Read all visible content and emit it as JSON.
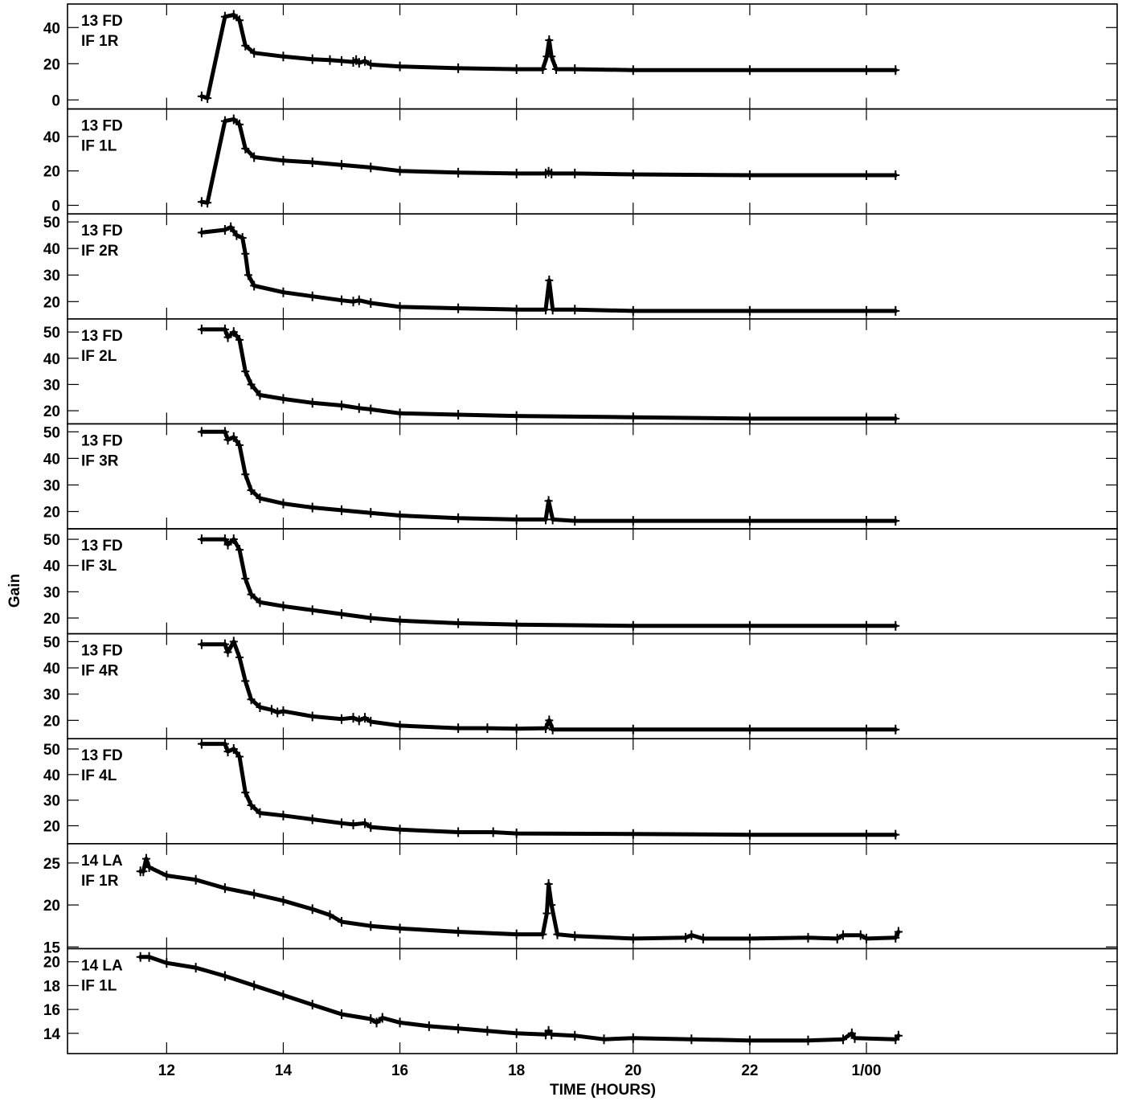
{
  "chart_data": {
    "type": "line",
    "ylabel": "Gain",
    "xlabel": "TIME (HOURS)",
    "xlim": [
      10.3,
      28.3
    ],
    "xticks": [
      12,
      14,
      16,
      18,
      20,
      22,
      24
    ],
    "xtick_labels": [
      "12",
      "14",
      "16",
      "18",
      "20",
      "22",
      "1/00"
    ],
    "marker": "plus",
    "panels": [
      {
        "label_line1": "13 FD",
        "label_line2": "IF 1R",
        "ylim": [
          -5,
          53
        ],
        "yticks": [
          0,
          20,
          40
        ],
        "points": [
          [
            12.6,
            2
          ],
          [
            12.7,
            1
          ],
          [
            13.0,
            46
          ],
          [
            13.15,
            47
          ],
          [
            13.25,
            44
          ],
          [
            13.35,
            30
          ],
          [
            13.5,
            26
          ],
          [
            14,
            24
          ],
          [
            14.5,
            22.5
          ],
          [
            14.8,
            22
          ],
          [
            15,
            21.5
          ],
          [
            15.2,
            21
          ],
          [
            15.25,
            22
          ],
          [
            15.3,
            20.5
          ],
          [
            15.4,
            21.5
          ],
          [
            15.5,
            19.5
          ],
          [
            16,
            18.5
          ],
          [
            17,
            17.5
          ],
          [
            18,
            17
          ],
          [
            18.45,
            17
          ],
          [
            18.52,
            24
          ],
          [
            18.56,
            33
          ],
          [
            18.6,
            24
          ],
          [
            18.68,
            17
          ],
          [
            19,
            17
          ],
          [
            20,
            16.5
          ],
          [
            22,
            16.5
          ],
          [
            24,
            16.5
          ],
          [
            24.5,
            16.5
          ]
        ]
      },
      {
        "label_line1": "13 FD",
        "label_line2": "IF 1L",
        "ylim": [
          -5,
          56
        ],
        "yticks": [
          0,
          20,
          40
        ],
        "points": [
          [
            12.6,
            2
          ],
          [
            12.7,
            1.5
          ],
          [
            13.0,
            49
          ],
          [
            13.15,
            50
          ],
          [
            13.25,
            47
          ],
          [
            13.35,
            33
          ],
          [
            13.5,
            28
          ],
          [
            14,
            26
          ],
          [
            14.5,
            25
          ],
          [
            15,
            23.5
          ],
          [
            15.5,
            22
          ],
          [
            16,
            20
          ],
          [
            17,
            19
          ],
          [
            18,
            18.5
          ],
          [
            18.5,
            18.5
          ],
          [
            18.55,
            19.5
          ],
          [
            18.6,
            18.5
          ],
          [
            19,
            18.5
          ],
          [
            20,
            18
          ],
          [
            22,
            17.5
          ],
          [
            24,
            17.5
          ],
          [
            24.5,
            17.5
          ]
        ]
      },
      {
        "label_line1": "13 FD",
        "label_line2": "IF 2R",
        "ylim": [
          13.5,
          53
        ],
        "yticks": [
          20,
          30,
          40,
          50
        ],
        "points": [
          [
            12.6,
            46
          ],
          [
            13.0,
            47
          ],
          [
            13.1,
            48
          ],
          [
            13.2,
            45
          ],
          [
            13.3,
            44
          ],
          [
            13.35,
            38
          ],
          [
            13.4,
            30
          ],
          [
            13.5,
            26
          ],
          [
            14,
            23.5
          ],
          [
            14.5,
            22
          ],
          [
            15,
            20.5
          ],
          [
            15.2,
            20
          ],
          [
            15.3,
            20.5
          ],
          [
            15.5,
            19.5
          ],
          [
            16,
            18
          ],
          [
            17,
            17.5
          ],
          [
            18,
            17
          ],
          [
            18.5,
            17
          ],
          [
            18.56,
            28
          ],
          [
            18.62,
            17
          ],
          [
            19,
            17
          ],
          [
            20,
            16.5
          ],
          [
            22,
            16.5
          ],
          [
            24,
            16.5
          ],
          [
            24.5,
            16.5
          ]
        ]
      },
      {
        "label_line1": "13 FD",
        "label_line2": "IF 2L",
        "ylim": [
          15,
          55
        ],
        "yticks": [
          20,
          30,
          40,
          50
        ],
        "points": [
          [
            12.6,
            51
          ],
          [
            13.0,
            51
          ],
          [
            13.05,
            48
          ],
          [
            13.15,
            50
          ],
          [
            13.25,
            47
          ],
          [
            13.35,
            35
          ],
          [
            13.45,
            30
          ],
          [
            13.6,
            26
          ],
          [
            14,
            24.5
          ],
          [
            14.5,
            23
          ],
          [
            15,
            22
          ],
          [
            15.3,
            21
          ],
          [
            15.5,
            20.5
          ],
          [
            16,
            19
          ],
          [
            17,
            18.5
          ],
          [
            18,
            18
          ],
          [
            20,
            17.5
          ],
          [
            22,
            17
          ],
          [
            24,
            17
          ],
          [
            24.5,
            17
          ]
        ]
      },
      {
        "label_line1": "13 FD",
        "label_line2": "IF 3R",
        "ylim": [
          13.5,
          53
        ],
        "yticks": [
          20,
          30,
          40,
          50
        ],
        "points": [
          [
            12.6,
            50
          ],
          [
            13.0,
            50
          ],
          [
            13.05,
            47
          ],
          [
            13.15,
            48
          ],
          [
            13.25,
            45
          ],
          [
            13.35,
            34
          ],
          [
            13.45,
            28
          ],
          [
            13.6,
            25
          ],
          [
            14,
            23
          ],
          [
            14.5,
            21.5
          ],
          [
            15,
            20.5
          ],
          [
            15.5,
            19.5
          ],
          [
            16,
            18.5
          ],
          [
            17,
            17.5
          ],
          [
            18,
            17
          ],
          [
            18.5,
            17
          ],
          [
            18.55,
            24
          ],
          [
            18.62,
            17
          ],
          [
            19,
            16.5
          ],
          [
            20,
            16.5
          ],
          [
            22,
            16.5
          ],
          [
            24,
            16.5
          ],
          [
            24.5,
            16.5
          ]
        ]
      },
      {
        "label_line1": "13 FD",
        "label_line2": "IF 3L",
        "ylim": [
          14,
          54
        ],
        "yticks": [
          20,
          30,
          40,
          50
        ],
        "points": [
          [
            12.6,
            50
          ],
          [
            13.0,
            50
          ],
          [
            13.05,
            48
          ],
          [
            13.15,
            50
          ],
          [
            13.25,
            46
          ],
          [
            13.35,
            35
          ],
          [
            13.45,
            29
          ],
          [
            13.6,
            26
          ],
          [
            14,
            24.5
          ],
          [
            14.5,
            23
          ],
          [
            15,
            21.5
          ],
          [
            15.5,
            20
          ],
          [
            16,
            19
          ],
          [
            17,
            18
          ],
          [
            18,
            17.5
          ],
          [
            20,
            17
          ],
          [
            22,
            17
          ],
          [
            24,
            17
          ],
          [
            24.5,
            17
          ]
        ]
      },
      {
        "label_line1": "13 FD",
        "label_line2": "IF 4R",
        "ylim": [
          13,
          53
        ],
        "yticks": [
          20,
          30,
          40,
          50
        ],
        "points": [
          [
            12.6,
            49
          ],
          [
            13.0,
            49
          ],
          [
            13.05,
            46
          ],
          [
            13.15,
            50
          ],
          [
            13.25,
            44
          ],
          [
            13.35,
            35
          ],
          [
            13.45,
            28
          ],
          [
            13.6,
            25
          ],
          [
            13.8,
            24
          ],
          [
            13.9,
            23
          ],
          [
            14.0,
            23.5
          ],
          [
            14.5,
            21.5
          ],
          [
            15,
            20.5
          ],
          [
            15.2,
            21
          ],
          [
            15.3,
            20
          ],
          [
            15.4,
            21
          ],
          [
            15.5,
            19.5
          ],
          [
            16,
            18
          ],
          [
            17,
            17
          ],
          [
            17.5,
            17
          ],
          [
            18,
            16.8
          ],
          [
            18.5,
            17
          ],
          [
            18.56,
            20
          ],
          [
            18.62,
            16.5
          ],
          [
            20,
            16.5
          ],
          [
            22,
            16.5
          ],
          [
            24,
            16.5
          ],
          [
            24.5,
            16.5
          ]
        ]
      },
      {
        "label_line1": "13 FD",
        "label_line2": "IF 4L",
        "ylim": [
          13,
          54
        ],
        "yticks": [
          20,
          30,
          40,
          50
        ],
        "points": [
          [
            12.6,
            52
          ],
          [
            13.0,
            52
          ],
          [
            13.05,
            49
          ],
          [
            13.15,
            50
          ],
          [
            13.25,
            47
          ],
          [
            13.35,
            33
          ],
          [
            13.45,
            28
          ],
          [
            13.6,
            25
          ],
          [
            14,
            24
          ],
          [
            14.5,
            22.5
          ],
          [
            15,
            21
          ],
          [
            15.2,
            20.5
          ],
          [
            15.4,
            21
          ],
          [
            15.5,
            19.5
          ],
          [
            16,
            18.5
          ],
          [
            17,
            17.5
          ],
          [
            17.6,
            17.5
          ],
          [
            18,
            17
          ],
          [
            20,
            16.8
          ],
          [
            22,
            16.5
          ],
          [
            24,
            16.5
          ],
          [
            24.5,
            16.5
          ]
        ]
      },
      {
        "label_line1": "14 LA",
        "label_line2": "IF 1R",
        "ylim": [
          14.8,
          27.3
        ],
        "yticks": [
          15,
          20,
          25
        ],
        "points": [
          [
            11.55,
            24
          ],
          [
            11.6,
            24
          ],
          [
            11.65,
            25.5
          ],
          [
            11.7,
            24.5
          ],
          [
            12,
            23.5
          ],
          [
            12.5,
            23
          ],
          [
            13,
            22
          ],
          [
            13.5,
            21.3
          ],
          [
            14,
            20.5
          ],
          [
            14.5,
            19.5
          ],
          [
            14.8,
            18.8
          ],
          [
            15,
            18
          ],
          [
            15.5,
            17.5
          ],
          [
            16,
            17.2
          ],
          [
            17,
            16.8
          ],
          [
            18,
            16.5
          ],
          [
            18.45,
            16.5
          ],
          [
            18.52,
            19
          ],
          [
            18.55,
            22.5
          ],
          [
            18.6,
            20
          ],
          [
            18.7,
            16.5
          ],
          [
            19,
            16.3
          ],
          [
            20,
            16
          ],
          [
            20.9,
            16.1
          ],
          [
            21,
            16.4
          ],
          [
            21.2,
            16
          ],
          [
            22,
            16
          ],
          [
            23,
            16.1
          ],
          [
            23.5,
            16
          ],
          [
            23.6,
            16.4
          ],
          [
            23.9,
            16.4
          ],
          [
            24,
            16
          ],
          [
            24.5,
            16.1
          ],
          [
            24.55,
            16.8
          ]
        ]
      },
      {
        "label_line1": "14 LA",
        "label_line2": "IF 1L",
        "ylim": [
          12.3,
          21.1
        ],
        "yticks": [
          14,
          16,
          18,
          20
        ],
        "points": [
          [
            11.55,
            20.4
          ],
          [
            11.7,
            20.4
          ],
          [
            12,
            19.9
          ],
          [
            12.5,
            19.5
          ],
          [
            13,
            18.8
          ],
          [
            13.5,
            18
          ],
          [
            14,
            17.2
          ],
          [
            14.5,
            16.4
          ],
          [
            15,
            15.6
          ],
          [
            15.5,
            15.2
          ],
          [
            15.6,
            14.9
          ],
          [
            15.7,
            15.3
          ],
          [
            16,
            14.9
          ],
          [
            16.5,
            14.6
          ],
          [
            17,
            14.4
          ],
          [
            17.5,
            14.2
          ],
          [
            18,
            14
          ],
          [
            18.5,
            13.9
          ],
          [
            18.55,
            14.2
          ],
          [
            18.6,
            13.9
          ],
          [
            19,
            13.8
          ],
          [
            19.5,
            13.5
          ],
          [
            20,
            13.6
          ],
          [
            21,
            13.5
          ],
          [
            22,
            13.4
          ],
          [
            23,
            13.4
          ],
          [
            23.6,
            13.5
          ],
          [
            23.75,
            14
          ],
          [
            23.8,
            13.6
          ],
          [
            24.5,
            13.5
          ],
          [
            24.55,
            13.8
          ]
        ]
      }
    ]
  }
}
